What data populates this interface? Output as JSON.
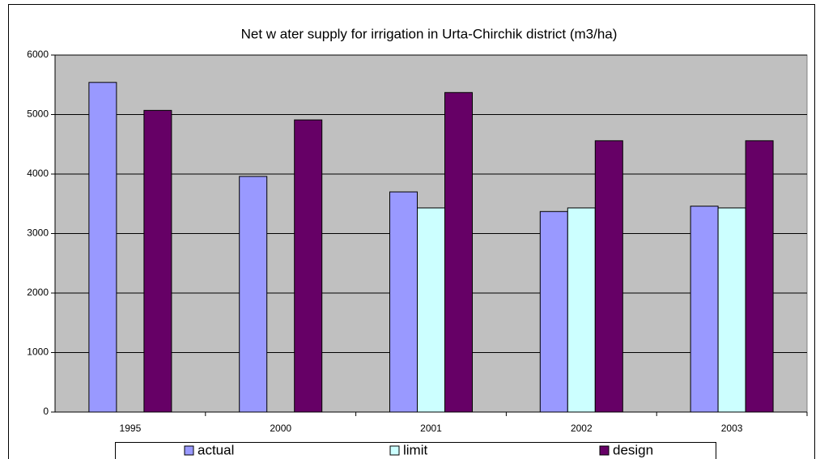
{
  "chart_data": {
    "type": "bar",
    "title": "Net w ater supply for irrigation in Urta-Chirchik district (m3/ha)",
    "categories": [
      "1995",
      "2000",
      "2001",
      "2002",
      "2003"
    ],
    "series": [
      {
        "name": "actual",
        "color": "#9999ff",
        "values": [
          5540,
          3960,
          3700,
          3370,
          3460
        ]
      },
      {
        "name": "limit",
        "color": "#ccffff",
        "values": [
          null,
          null,
          3430,
          3430,
          3430
        ]
      },
      {
        "name": "design",
        "color": "#660066",
        "values": [
          5070,
          4910,
          5370,
          4560,
          4560
        ]
      }
    ],
    "ylim": [
      0,
      6000
    ],
    "yticks": [
      0,
      1000,
      2000,
      3000,
      4000,
      5000,
      6000
    ],
    "grid": true,
    "plot_background": "#c0c0c0",
    "legend": "bottom"
  }
}
